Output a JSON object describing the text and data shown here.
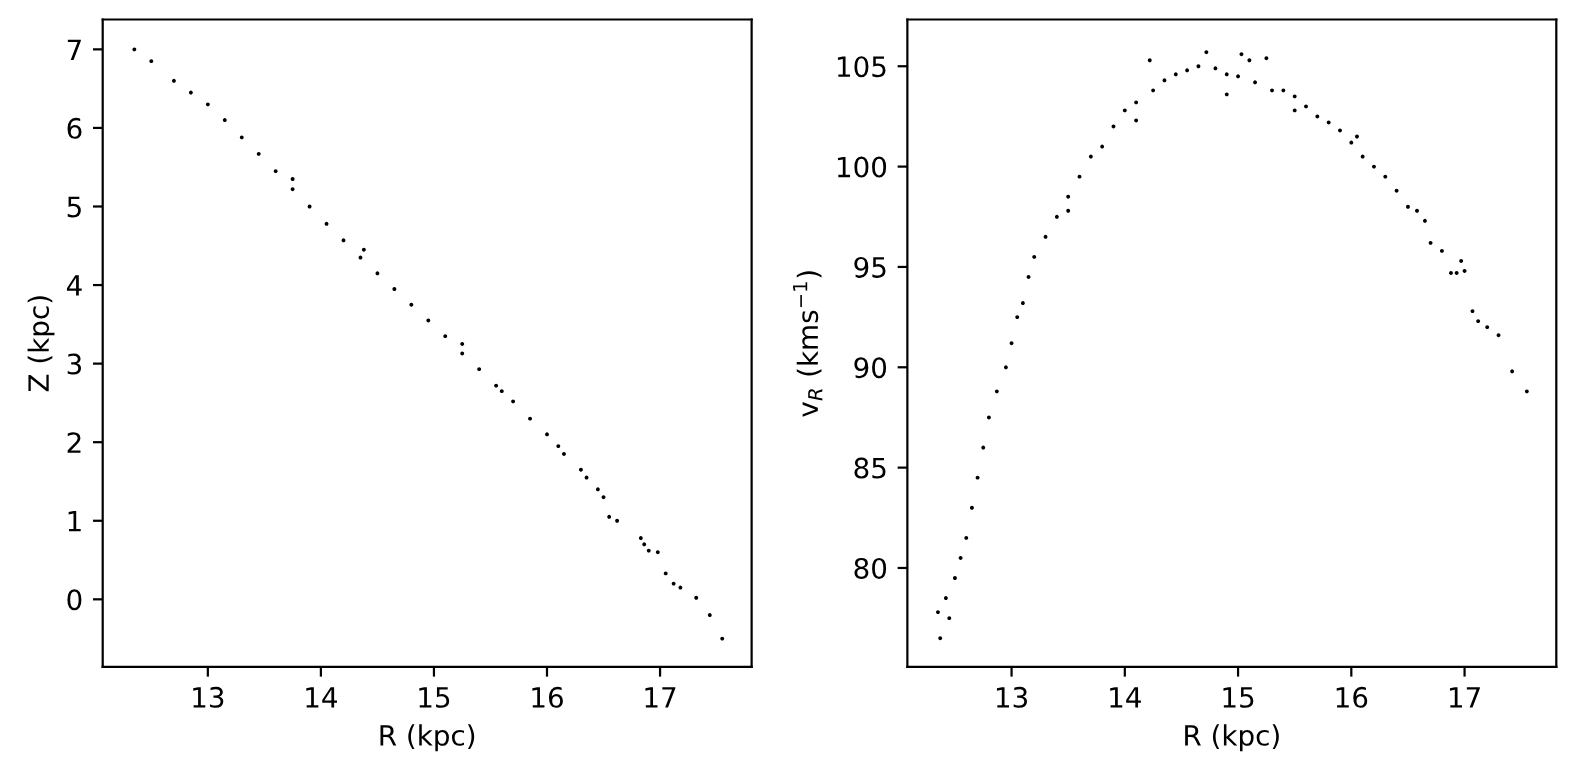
{
  "chart_data": [
    {
      "type": "scatter",
      "xlabel": "R (kpc)",
      "ylabel": "Z (kpc)",
      "xlim": [
        12.07,
        17.81
      ],
      "ylim": [
        -0.86,
        7.38
      ],
      "xticks": [
        13,
        14,
        15,
        16,
        17
      ],
      "yticks": [
        0,
        1,
        2,
        3,
        4,
        5,
        6,
        7
      ],
      "marker": "circle",
      "grid": false,
      "legend": false,
      "series": [
        {
          "color": "#000000",
          "x": [
            12.35,
            12.5,
            12.7,
            12.85,
            13.0,
            13.15,
            13.3,
            13.45,
            13.6,
            13.75,
            13.9,
            14.05,
            14.2,
            14.35,
            14.5,
            14.65,
            14.8,
            14.95,
            15.1,
            15.25,
            15.4,
            15.55,
            15.7,
            15.85,
            16.0,
            16.15,
            16.3,
            13.75,
            14.38,
            15.25,
            15.6,
            16.1,
            16.35,
            16.45,
            16.5,
            16.55,
            16.62,
            16.83,
            16.86,
            16.9,
            16.98,
            17.05,
            17.12,
            17.18,
            17.32,
            17.44,
            17.55
          ],
          "values": [
            7.0,
            6.85,
            6.6,
            6.45,
            6.3,
            6.1,
            5.88,
            5.67,
            5.45,
            5.22,
            5.0,
            4.78,
            4.57,
            4.35,
            4.15,
            3.95,
            3.75,
            3.55,
            3.35,
            3.13,
            2.93,
            2.72,
            2.52,
            2.3,
            2.1,
            1.85,
            1.65,
            5.35,
            4.45,
            3.25,
            2.65,
            1.95,
            1.55,
            1.4,
            1.3,
            1.05,
            1.0,
            0.78,
            0.7,
            0.62,
            0.6,
            0.33,
            0.2,
            0.15,
            0.02,
            -0.2,
            -0.5
          ]
        }
      ]
    },
    {
      "type": "scatter",
      "xlabel": "R (kpc)",
      "ylabel": "v$_{R}$ (kms$^{−1}$)",
      "xlim": [
        12.08,
        17.81
      ],
      "ylim": [
        75.07,
        107.33
      ],
      "xticks": [
        13,
        14,
        15,
        16,
        17
      ],
      "yticks": [
        80,
        85,
        90,
        95,
        100,
        105
      ],
      "marker": "circle",
      "grid": false,
      "legend": false,
      "series": [
        {
          "color": "#000000",
          "x": [
            12.37,
            12.35,
            12.42,
            12.45,
            12.5,
            12.55,
            12.6,
            12.65,
            12.7,
            12.75,
            12.8,
            12.87,
            12.95,
            13.0,
            13.05,
            13.1,
            13.15,
            13.2,
            13.3,
            13.4,
            13.5,
            13.5,
            13.6,
            13.7,
            13.8,
            13.9,
            14.0,
            14.1,
            14.1,
            14.22,
            14.25,
            14.35,
            14.45,
            14.55,
            14.65,
            14.72,
            14.8,
            14.9,
            14.9,
            15.0,
            15.03,
            15.1,
            15.15,
            15.25,
            15.3,
            15.4,
            15.5,
            15.5,
            15.6,
            15.7,
            15.8,
            15.9,
            16.0,
            16.05,
            16.1,
            16.2,
            16.3,
            16.4,
            16.5,
            16.58,
            16.65,
            16.7,
            16.8,
            16.88,
            16.93,
            16.97,
            17.0,
            17.07,
            17.12,
            17.2,
            17.3,
            17.42,
            17.55
          ],
          "values": [
            76.5,
            77.8,
            78.5,
            77.5,
            79.5,
            80.5,
            81.5,
            83,
            84.5,
            86,
            87.5,
            88.8,
            90,
            91.2,
            92.5,
            93.2,
            94.5,
            95.5,
            96.5,
            97.5,
            98.5,
            97.8,
            99.5,
            100.5,
            101,
            102,
            102.8,
            103.2,
            102.3,
            105.3,
            103.8,
            104.3,
            104.6,
            104.8,
            105,
            105.7,
            104.9,
            104.6,
            103.6,
            104.5,
            105.6,
            105.3,
            104.2,
            105.4,
            103.8,
            103.8,
            103.5,
            102.8,
            103,
            102.5,
            102.2,
            101.8,
            101.2,
            101.5,
            100.5,
            100,
            99.5,
            98.8,
            98,
            97.8,
            97.3,
            96.2,
            95.8,
            94.7,
            94.7,
            95.3,
            94.8,
            92.8,
            92.3,
            92,
            91.6,
            89.8,
            88.8
          ]
        }
      ]
    }
  ]
}
